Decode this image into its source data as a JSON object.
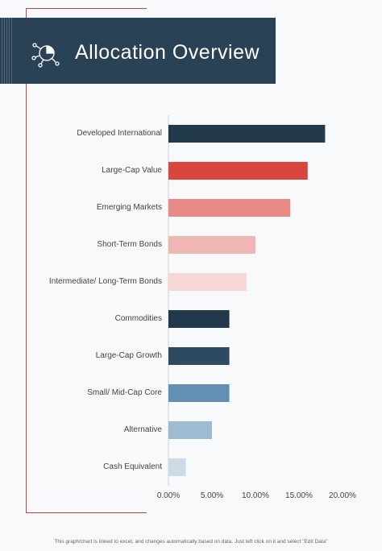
{
  "header": {
    "title": "Allocation Overview",
    "icon": "pie-chart-network-icon",
    "background": "#2a4256"
  },
  "chart_data": {
    "type": "bar",
    "orientation": "horizontal",
    "title": "Allocation Overview",
    "categories": [
      "Developed International",
      "Large-Cap Value",
      "Emerging Markets",
      "Short-Term Bonds",
      "Intermediate/ Long-Term Bonds",
      "Commodities",
      "Large-Cap Growth",
      "Small/ Mid-Cap Core",
      "Alternative",
      "Cash Equivalent"
    ],
    "values": [
      18,
      16,
      14,
      10,
      9,
      7,
      7,
      7,
      5,
      2
    ],
    "value_unit": "percent",
    "bar_colors": [
      "#22384b",
      "#d9463e",
      "#e88a86",
      "#f0b6b3",
      "#f8d8d6",
      "#22384b",
      "#2d4a60",
      "#6190b4",
      "#9dbbd3",
      "#cddbe6"
    ],
    "xlim": [
      0,
      20
    ],
    "xticks": [
      "0.00%",
      "5.00%",
      "10.00%",
      "15.00%",
      "20.00%"
    ],
    "xlabel": "",
    "ylabel": "",
    "grid": false,
    "legend": "none"
  },
  "footer": {
    "note": "This graph/chart is linked to excel, and changes automatically based on data. Just left click on it and select \"Edit Data\""
  }
}
